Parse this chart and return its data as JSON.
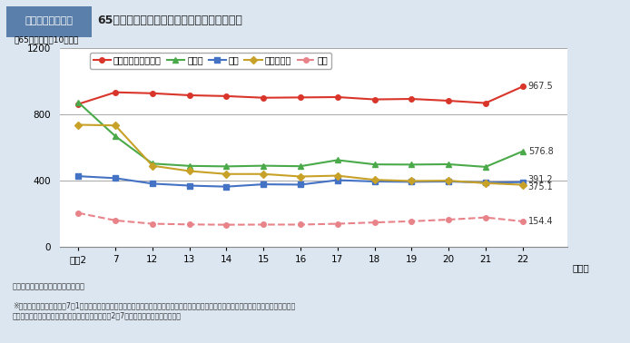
{
  "title_prefix": "図１－２－３－８",
  "title_main": "65歳以上の高齢者の主な死因別死亡率の推移",
  "ylabel": "（65歳以上人口10万対）",
  "xlabel_note": "（年）",
  "years": [
    "平成2",
    "7",
    "12",
    "13",
    "14",
    "15",
    "16",
    "17",
    "18",
    "19",
    "20",
    "21",
    "22"
  ],
  "x_positions": [
    0,
    1,
    2,
    3,
    4,
    5,
    6,
    7,
    8,
    9,
    10,
    11,
    12
  ],
  "series": [
    {
      "name": "悪性新生物（がん）",
      "color": "#d9352a",
      "marker": "o",
      "linestyle": "-",
      "linewidth": 1.5,
      "markersize": 4,
      "values": [
        862,
        933,
        927,
        915,
        910,
        900,
        902,
        904,
        890,
        893,
        882,
        868,
        967.5
      ],
      "end_label": "967.5"
    },
    {
      "name": "心疾患",
      "color": "#4aaa4a",
      "marker": "^",
      "linestyle": "-",
      "linewidth": 1.5,
      "markersize": 4,
      "values": [
        872,
        668,
        503,
        489,
        486,
        490,
        487,
        524,
        498,
        497,
        499,
        483,
        576.8
      ],
      "end_label": "576.8"
    },
    {
      "name": "肺炎",
      "color": "#4472c4",
      "marker": "s",
      "linestyle": "-",
      "linewidth": 1.5,
      "markersize": 4,
      "values": [
        427,
        415,
        382,
        370,
        364,
        378,
        376,
        403,
        395,
        393,
        395,
        388,
        391.2
      ],
      "end_label": "391.2"
    },
    {
      "name": "脳血管疾患",
      "color": "#c8a228",
      "marker": "D",
      "linestyle": "-",
      "linewidth": 1.5,
      "markersize": 4,
      "values": [
        737,
        733,
        490,
        458,
        440,
        440,
        425,
        430,
        405,
        398,
        400,
        385,
        375.1
      ],
      "end_label": "375.1"
    },
    {
      "name": "老衰",
      "color": "#e8838a",
      "marker": "o",
      "linestyle": "--",
      "linewidth": 1.5,
      "markersize": 4,
      "values": [
        205,
        160,
        140,
        136,
        134,
        135,
        135,
        140,
        148,
        155,
        165,
        178,
        154.4
      ],
      "end_label": "154.4"
    }
  ],
  "ylim": [
    0,
    1200
  ],
  "yticks": [
    0,
    400,
    800,
    1200
  ],
  "background_color": "#dce6f0",
  "plot_bg_color": "#ffffff",
  "grid_color": "#999999",
  "title_box_color": "#5a7faa",
  "title_box_text_color": "#ffffff",
  "note1": "資料：厚生労働省「人口動態統計」",
  "note2": "※心疾患においては、平成7年1月から死亡診断書に「死亡の原因欄には、疾患の終末期の状態としての心不全、呼吸不全等は書かないでくださ\n　い。」という注意書きが追加された影響で、平成2～7年間で大きく減少している。"
}
